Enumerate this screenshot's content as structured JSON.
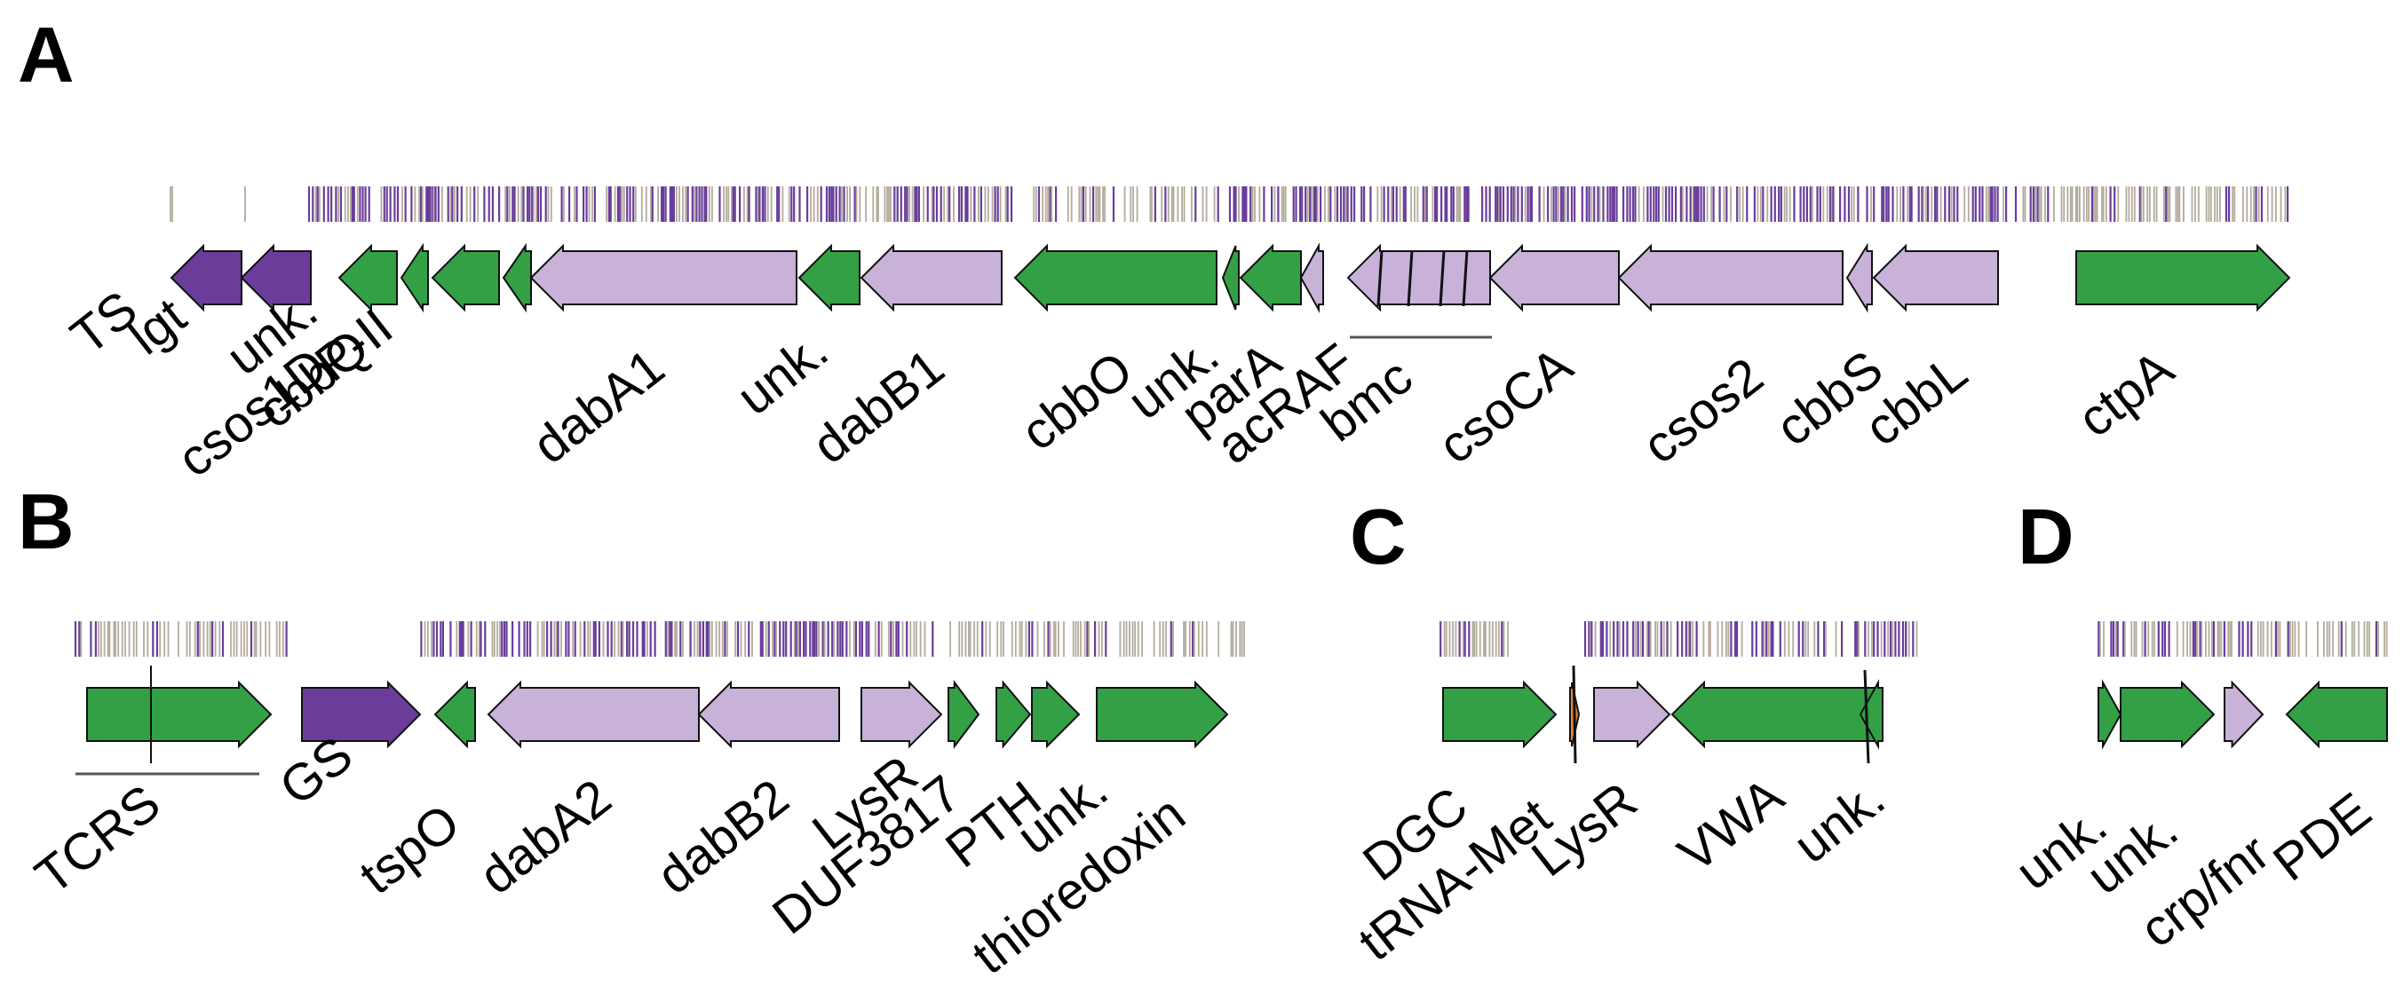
{
  "colors": {
    "green": "#33a046",
    "dark_purple": "#6a3d9a",
    "light_purple": "#c8b2d8",
    "orange": "#e5883a",
    "tick_grey": "#b3ab9c",
    "tick_purple": "#6a3d9a",
    "line": "#555555"
  },
  "panels": {
    "A": {
      "letter": "A",
      "genes": [
        {
          "label": "TS",
          "color": "dark_purple",
          "dir": "left"
        },
        {
          "label": "lgt",
          "color": "dark_purple",
          "dir": "left"
        },
        {
          "label": "csos1D",
          "color": "green",
          "dir": "left"
        },
        {
          "label": "unk.",
          "color": "green",
          "dir": "left"
        },
        {
          "label": "cbbQ",
          "color": "green",
          "dir": "left"
        },
        {
          "label": "P-II",
          "color": "green",
          "dir": "left"
        },
        {
          "label": "dabA1",
          "color": "light_purple",
          "dir": "left"
        },
        {
          "label": "unk.",
          "color": "green",
          "dir": "left"
        },
        {
          "label": "dabB1",
          "color": "light_purple",
          "dir": "left"
        },
        {
          "label": "cbbO",
          "color": "green",
          "dir": "left"
        },
        {
          "label": "unk.",
          "color": "green",
          "dir": "left"
        },
        {
          "label": "parA",
          "color": "green",
          "dir": "left"
        },
        {
          "label": "acRAF",
          "color": "light_purple",
          "dir": "left"
        },
        {
          "label": "bmc",
          "color": "light_purple",
          "dir": "left"
        },
        {
          "label": "csoCA",
          "color": "light_purple",
          "dir": "left"
        },
        {
          "label": "csos2",
          "color": "light_purple",
          "dir": "left"
        },
        {
          "label": "cbbS",
          "color": "light_purple",
          "dir": "left"
        },
        {
          "label": "cbbL",
          "color": "light_purple",
          "dir": "left"
        },
        {
          "label": "ctpA",
          "color": "green",
          "dir": "right"
        }
      ]
    },
    "B": {
      "letter": "B",
      "genes": [
        {
          "label": "TCRS",
          "color": "green",
          "dir": "right"
        },
        {
          "label": "GS",
          "color": "dark_purple",
          "dir": "right"
        },
        {
          "label": "tspO",
          "color": "green",
          "dir": "left"
        },
        {
          "label": "dabA2",
          "color": "light_purple",
          "dir": "left"
        },
        {
          "label": "dabB2",
          "color": "light_purple",
          "dir": "left"
        },
        {
          "label": "LysR",
          "color": "light_purple",
          "dir": "right"
        },
        {
          "label": "DUF3817",
          "color": "green",
          "dir": "right"
        },
        {
          "label": "PTH",
          "color": "green",
          "dir": "right"
        },
        {
          "label": "unk.",
          "color": "green",
          "dir": "right"
        },
        {
          "label": "thioredoxin",
          "color": "green",
          "dir": "right"
        }
      ]
    },
    "C": {
      "letter": "C",
      "genes": [
        {
          "label": "DGC",
          "color": "green",
          "dir": "right"
        },
        {
          "label": "tRNA-Met",
          "color": "orange",
          "dir": "right"
        },
        {
          "label": "LysR",
          "color": "light_purple",
          "dir": "right"
        },
        {
          "label": "VWA",
          "color": "green",
          "dir": "left"
        },
        {
          "label": "unk.",
          "color": "green",
          "dir": "left"
        }
      ]
    },
    "D": {
      "letter": "D",
      "genes": [
        {
          "label": "unk.",
          "color": "green",
          "dir": "right"
        },
        {
          "label": "unk.",
          "color": "green",
          "dir": "right"
        },
        {
          "label": "crp/fnr",
          "color": "light_purple",
          "dir": "right"
        },
        {
          "label": "PDE",
          "color": "green",
          "dir": "left"
        }
      ]
    }
  }
}
